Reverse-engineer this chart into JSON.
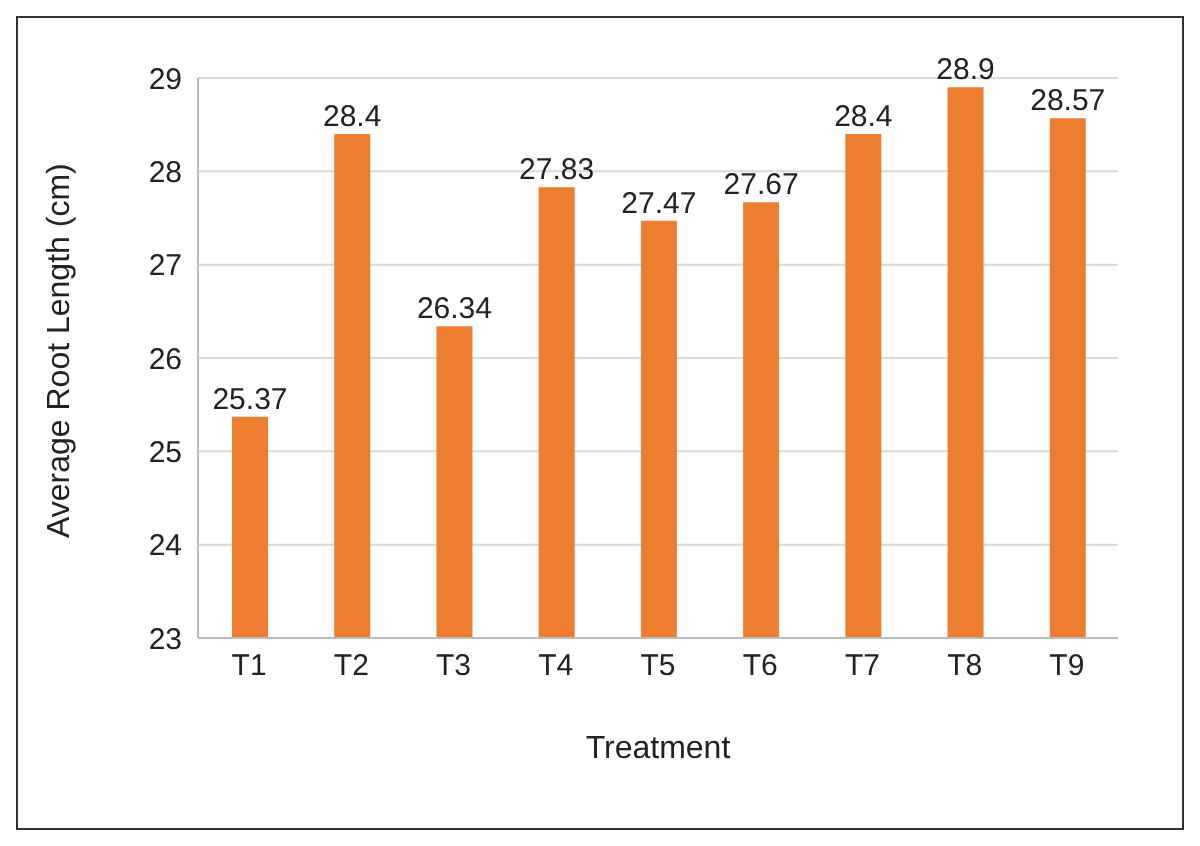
{
  "chart_data": {
    "type": "bar",
    "xlabel": "Treatment",
    "ylabel": "Average Root Length (cm)",
    "categories": [
      "T1",
      "T2",
      "T3",
      "T4",
      "T5",
      "T6",
      "T7",
      "T8",
      "T9"
    ],
    "values": [
      25.37,
      28.4,
      26.34,
      27.83,
      27.47,
      27.67,
      28.4,
      28.9,
      28.57
    ],
    "color": "#ed7d31",
    "ylim": [
      23,
      29
    ],
    "yticks": [
      23,
      24,
      25,
      26,
      27,
      28,
      29
    ],
    "grid": "y",
    "data_labels": true
  }
}
